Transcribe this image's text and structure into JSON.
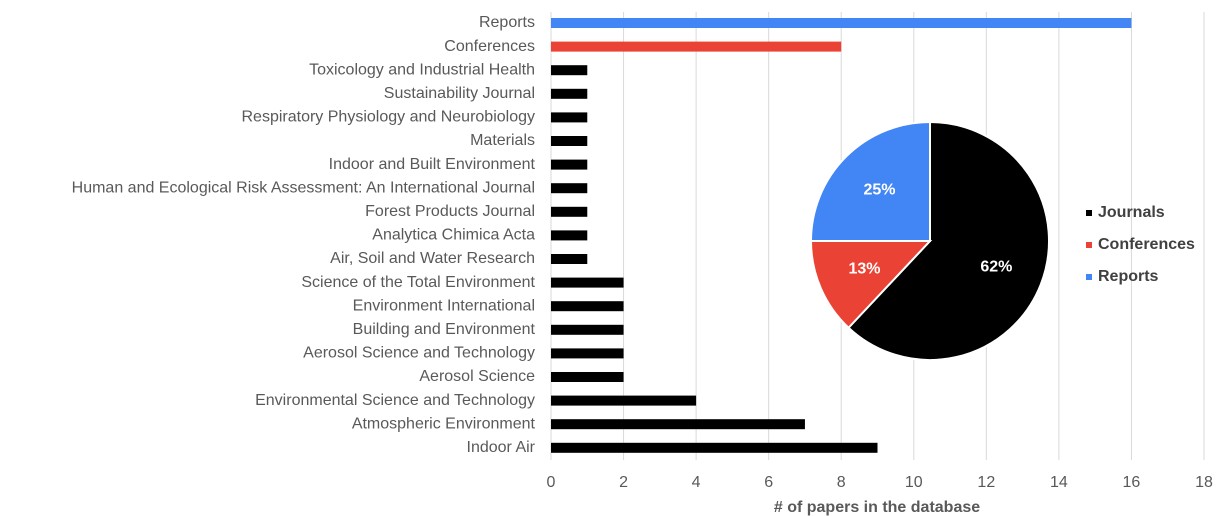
{
  "chart_data": [
    {
      "type": "bar",
      "orientation": "horizontal",
      "x_label": "# of papers in the database",
      "categories": [
        "Reports",
        "Conferences",
        "Toxicology and Industrial Health",
        "Sustainability Journal",
        "Respiratory Physiology and Neurobiology",
        "Materials",
        "Indoor and Built Environment",
        "Human and Ecological Risk Assessment: An International Journal",
        "Forest Products Journal",
        "Analytica Chimica Acta",
        "Air, Soil and Water Research",
        "Science of the Total Environment",
        "Environment International",
        "Building and Environment",
        "Aerosol Science and Technology",
        "Aerosol Science",
        "Environmental Science and Technology",
        "Atmospheric Environment",
        "Indoor Air"
      ],
      "values": [
        16,
        8,
        1,
        1,
        1,
        1,
        1,
        1,
        1,
        1,
        1,
        2,
        2,
        2,
        2,
        2,
        4,
        7,
        9
      ],
      "colors": [
        "#4285f4",
        "#ea4335",
        "#000000",
        "#000000",
        "#000000",
        "#000000",
        "#000000",
        "#000000",
        "#000000",
        "#000000",
        "#000000",
        "#000000",
        "#000000",
        "#000000",
        "#000000",
        "#000000",
        "#000000",
        "#000000",
        "#000000"
      ],
      "xlim": [
        0,
        18
      ],
      "xticks": [
        0,
        2,
        4,
        6,
        8,
        10,
        12,
        14,
        16,
        18
      ],
      "grid": true
    },
    {
      "type": "pie",
      "categories": [
        "Journals",
        "Conferences",
        "Reports"
      ],
      "values": [
        62,
        13,
        25
      ],
      "value_labels": [
        "62%",
        "13%",
        "25%"
      ],
      "colors": [
        "#000000",
        "#ea4335",
        "#4285f4"
      ],
      "legend": "right"
    }
  ]
}
